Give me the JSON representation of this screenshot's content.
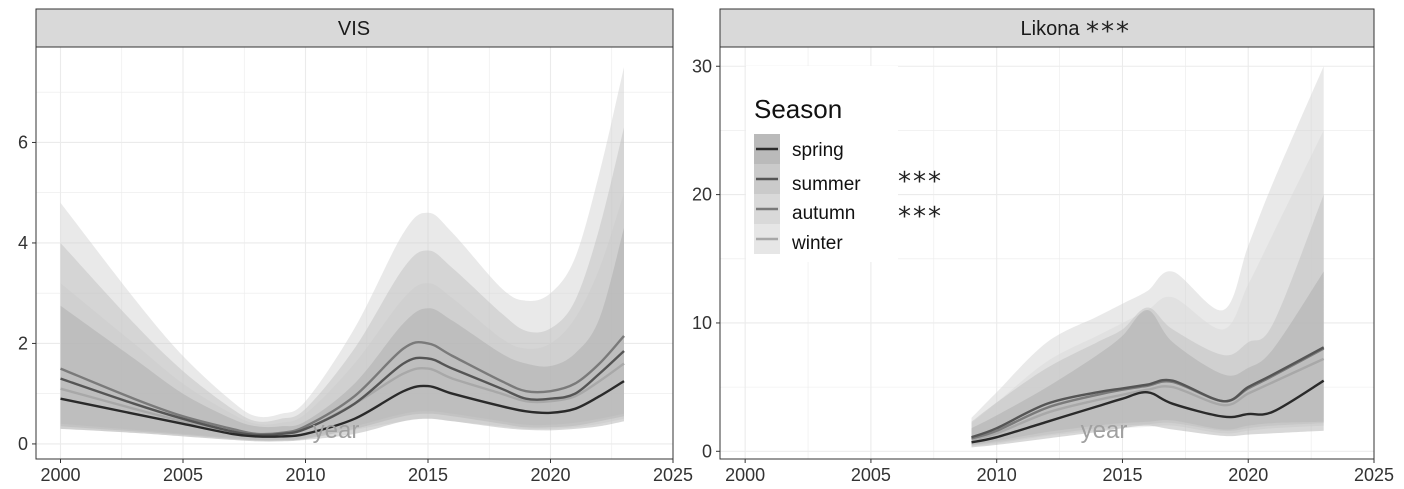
{
  "chart_data": [
    {
      "type": "line",
      "panel": "VIS",
      "panel_marker": "",
      "xlabel": "year",
      "ylabel": "",
      "xlim": [
        1999,
        2025
      ],
      "ylim": [
        -0.3,
        7.9
      ],
      "xticks": [
        2000,
        2005,
        2010,
        2015,
        2020,
        2025
      ],
      "yticks": [
        0,
        2,
        4,
        6
      ],
      "grid": true,
      "series": [
        {
          "name": "spring",
          "color": "#2a2a2a",
          "x": [
            2000,
            2003,
            2005,
            2007,
            2008,
            2009,
            2010,
            2012,
            2014,
            2015,
            2016,
            2018,
            2019,
            2020,
            2021,
            2022,
            2023
          ],
          "y": [
            0.9,
            0.6,
            0.4,
            0.2,
            0.15,
            0.15,
            0.2,
            0.5,
            1.05,
            1.15,
            1.0,
            0.75,
            0.65,
            0.62,
            0.7,
            0.95,
            1.25
          ],
          "lower": [
            0.3,
            0.22,
            0.15,
            0.08,
            0.05,
            0.05,
            0.08,
            0.2,
            0.45,
            0.5,
            0.45,
            0.32,
            0.28,
            0.27,
            0.3,
            0.35,
            0.45
          ],
          "upper": [
            2.75,
            1.7,
            1.0,
            0.5,
            0.35,
            0.35,
            0.45,
            1.2,
            2.4,
            2.7,
            2.45,
            1.8,
            1.6,
            1.55,
            1.8,
            2.5,
            4.3
          ]
        },
        {
          "name": "summer",
          "color": "#555555",
          "x": [
            2000,
            2003,
            2005,
            2007,
            2008,
            2009,
            2010,
            2012,
            2014,
            2015,
            2016,
            2018,
            2019,
            2020,
            2021,
            2022,
            2023
          ],
          "y": [
            1.3,
            0.8,
            0.5,
            0.25,
            0.18,
            0.2,
            0.3,
            0.8,
            1.6,
            1.7,
            1.5,
            1.1,
            0.9,
            0.9,
            1.0,
            1.4,
            1.85
          ],
          "lower": [
            0.35,
            0.25,
            0.18,
            0.1,
            0.07,
            0.07,
            0.1,
            0.3,
            0.55,
            0.6,
            0.55,
            0.4,
            0.33,
            0.33,
            0.36,
            0.45,
            0.55
          ],
          "upper": [
            4.0,
            2.4,
            1.45,
            0.7,
            0.45,
            0.5,
            0.7,
            1.9,
            3.5,
            3.85,
            3.5,
            2.6,
            2.25,
            2.3,
            2.85,
            4.3,
            6.3
          ]
        },
        {
          "name": "autumn",
          "color": "#7a7a7a",
          "x": [
            2000,
            2003,
            2005,
            2007,
            2008,
            2009,
            2010,
            2012,
            2014,
            2015,
            2016,
            2018,
            2019,
            2020,
            2021,
            2022,
            2023
          ],
          "y": [
            1.5,
            0.9,
            0.55,
            0.3,
            0.2,
            0.22,
            0.35,
            0.95,
            1.9,
            2.0,
            1.75,
            1.25,
            1.05,
            1.05,
            1.2,
            1.6,
            2.15
          ],
          "lower": [
            0.4,
            0.28,
            0.2,
            0.12,
            0.08,
            0.08,
            0.12,
            0.35,
            0.6,
            0.65,
            0.6,
            0.45,
            0.38,
            0.38,
            0.42,
            0.5,
            0.6
          ],
          "upper": [
            4.8,
            2.9,
            1.75,
            0.85,
            0.55,
            0.6,
            0.85,
            2.3,
            4.2,
            4.6,
            4.2,
            3.1,
            2.85,
            3.0,
            3.7,
            5.4,
            7.5
          ]
        },
        {
          "name": "winter",
          "color": "#a8a8a8",
          "x": [
            2000,
            2003,
            2005,
            2007,
            2008,
            2009,
            2010,
            2012,
            2014,
            2015,
            2016,
            2018,
            2019,
            2020,
            2021,
            2022,
            2023
          ],
          "y": [
            1.1,
            0.7,
            0.45,
            0.25,
            0.2,
            0.22,
            0.3,
            0.8,
            1.4,
            1.5,
            1.3,
            1.0,
            0.85,
            0.85,
            0.95,
            1.25,
            1.6
          ],
          "lower": [
            0.3,
            0.22,
            0.15,
            0.08,
            0.06,
            0.06,
            0.1,
            0.28,
            0.45,
            0.5,
            0.45,
            0.35,
            0.3,
            0.3,
            0.33,
            0.4,
            0.5
          ],
          "upper": [
            3.2,
            2.0,
            1.2,
            0.6,
            0.4,
            0.42,
            0.6,
            1.6,
            2.9,
            3.2,
            2.9,
            2.1,
            1.9,
            2.0,
            2.5,
            3.5,
            5.0
          ]
        }
      ]
    },
    {
      "type": "line",
      "panel": "Likona",
      "panel_marker": "***",
      "xlabel": "year",
      "ylabel": "",
      "xlim": [
        1999,
        2025
      ],
      "ylim": [
        -0.6,
        31.5
      ],
      "xticks": [
        2000,
        2005,
        2010,
        2015,
        2020,
        2025
      ],
      "yticks": [
        0,
        10,
        20,
        30
      ],
      "grid": true,
      "series": [
        {
          "name": "spring",
          "color": "#2a2a2a",
          "x": [
            2009,
            2010,
            2012,
            2014,
            2015,
            2016,
            2017,
            2019,
            2020,
            2021,
            2023
          ],
          "y": [
            0.7,
            1.1,
            2.3,
            3.5,
            4.1,
            4.6,
            3.7,
            2.7,
            2.9,
            3.1,
            5.5
          ],
          "lower": [
            0.3,
            0.5,
            1.0,
            1.5,
            1.8,
            2.0,
            1.7,
            1.2,
            1.3,
            1.4,
            1.6
          ],
          "upper": [
            1.8,
            2.8,
            5.0,
            7.5,
            9.0,
            11.0,
            8.5,
            6.0,
            6.5,
            8.0,
            14.0
          ]
        },
        {
          "name": "summer",
          "color": "#555555",
          "x": [
            2009,
            2010,
            2012,
            2014,
            2015,
            2016,
            2017,
            2019,
            2020,
            2021,
            2023
          ],
          "y": [
            1.1,
            1.8,
            3.7,
            4.6,
            4.9,
            5.2,
            5.5,
            3.9,
            5.0,
            6.0,
            8.1
          ],
          "lower": [
            0.5,
            0.8,
            1.5,
            2.0,
            2.2,
            2.3,
            2.4,
            1.7,
            2.0,
            2.2,
            2.3
          ],
          "upper": [
            2.3,
            3.8,
            6.5,
            8.5,
            9.5,
            11.2,
            9.5,
            7.5,
            8.5,
            10.0,
            20.0
          ]
        },
        {
          "name": "autumn",
          "color": "#7a7a7a",
          "x": [
            2009,
            2010,
            2012,
            2014,
            2015,
            2016,
            2017,
            2019,
            2020,
            2021,
            2023
          ],
          "y": [
            1.0,
            1.6,
            3.4,
            4.4,
            4.8,
            5.1,
            5.4,
            3.9,
            4.9,
            5.9,
            8.0
          ],
          "lower": [
            0.45,
            0.7,
            1.3,
            1.8,
            2.0,
            2.1,
            2.2,
            1.6,
            1.8,
            2.0,
            2.2
          ],
          "upper": [
            2.6,
            4.6,
            8.5,
            10.5,
            11.5,
            12.5,
            14.0,
            11.0,
            16.0,
            21.0,
            30.0
          ]
        },
        {
          "name": "winter",
          "color": "#a8a8a8",
          "x": [
            2009,
            2010,
            2012,
            2014,
            2015,
            2016,
            2017,
            2019,
            2020,
            2021,
            2023
          ],
          "y": [
            0.9,
            1.4,
            3.0,
            4.0,
            4.4,
            4.8,
            5.0,
            3.6,
            4.5,
            5.4,
            7.2
          ],
          "lower": [
            0.4,
            0.6,
            1.2,
            1.6,
            1.8,
            1.9,
            2.0,
            1.4,
            1.6,
            1.8,
            2.0
          ],
          "upper": [
            2.2,
            3.8,
            7.0,
            9.0,
            10.0,
            11.0,
            12.0,
            9.5,
            13.0,
            17.0,
            25.0
          ]
        }
      ]
    }
  ],
  "legend": {
    "title": "Season",
    "placement": "top-left of right panel",
    "items": [
      {
        "label": "spring",
        "marker": "",
        "color": "#2a2a2a",
        "band": "#a9a9a9"
      },
      {
        "label": "summer",
        "marker": "***",
        "color": "#555555",
        "band": "#bdbdbd"
      },
      {
        "label": "autumn",
        "marker": "***",
        "color": "#7a7a7a",
        "band": "#cfcfcf"
      },
      {
        "label": "winter",
        "marker": "",
        "color": "#a8a8a8",
        "band": "#e0e0e0"
      }
    ]
  },
  "style": {
    "strip_fill": "#d9d9d9",
    "grid_color": "#ebebeb",
    "band_colors": [
      "#a9a9a9",
      "#bdbdbd",
      "#cfcfcf",
      "#e0e0e0"
    ],
    "band_opacity": 0.45
  }
}
